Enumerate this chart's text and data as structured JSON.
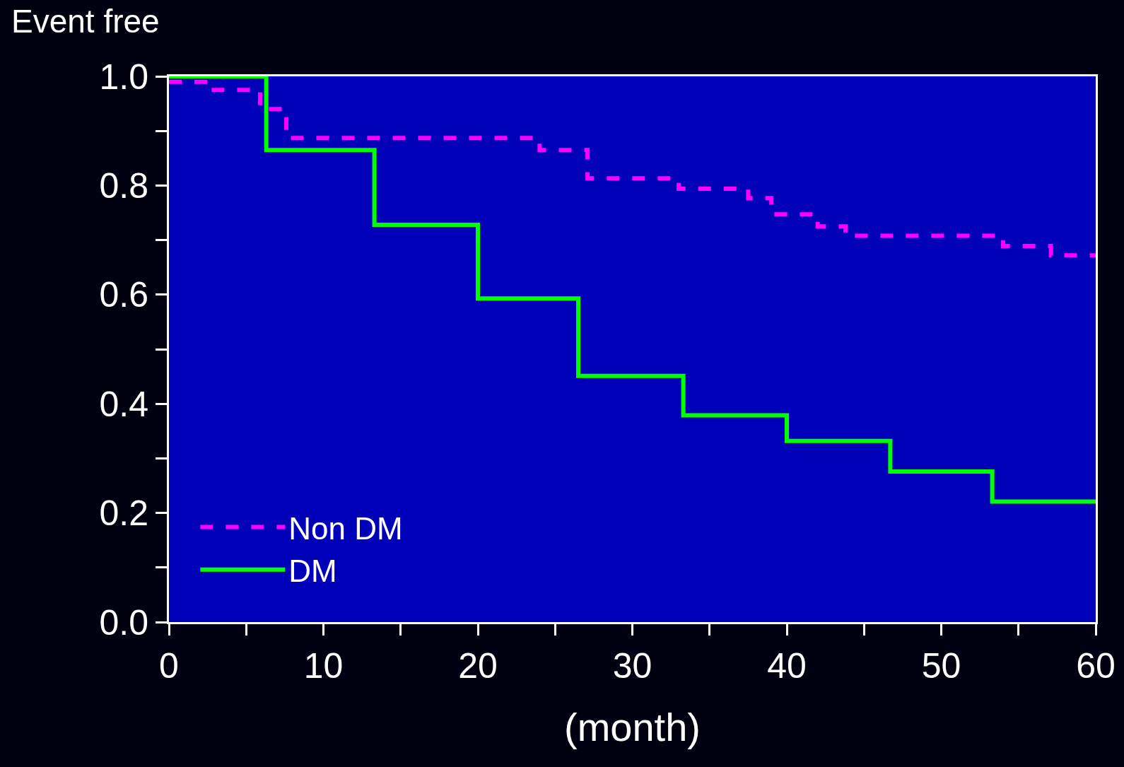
{
  "chart_data": {
    "type": "step",
    "xlabel": "(month)",
    "ylabel": "Event free",
    "xlim": [
      0,
      60
    ],
    "ylim": [
      0,
      1
    ],
    "xticks": [
      0,
      {
        "value": 5,
        "label": null
      },
      10,
      {
        "value": 15,
        "label": null
      },
      20,
      {
        "value": 25,
        "label": null
      },
      30,
      {
        "value": 35,
        "label": null
      },
      40,
      {
        "value": 45,
        "label": null
      },
      50,
      {
        "value": 55,
        "label": null
      },
      60
    ],
    "yticks": [
      {
        "value": 0,
        "label": "0.0"
      },
      {
        "value": 0.1,
        "label": null
      },
      0.2,
      {
        "value": 0.3,
        "label": null
      },
      0.4,
      {
        "value": 0.5,
        "label": null
      },
      0.6,
      {
        "value": 0.7,
        "label": null
      },
      0.8,
      {
        "value": 0.9,
        "label": null
      },
      {
        "value": 1,
        "label": "1.0"
      }
    ],
    "grid": false,
    "legend": "bottom left",
    "marker": "none",
    "series": [
      {
        "name": "Non DM",
        "color": "#ff00ff",
        "line_style": "dashed",
        "x": [
          0,
          2.9,
          5.9,
          7.6,
          24.0,
          27.1,
          33.0,
          37.5,
          39.0,
          42.0,
          43.8,
          54.0,
          57.1,
          60
        ],
        "values": [
          0.99,
          0.975,
          0.94,
          0.887,
          0.865,
          0.813,
          0.794,
          0.777,
          0.747,
          0.725,
          0.708,
          0.689,
          0.672,
          0.672
        ]
      },
      {
        "name": "DM",
        "color": "#00ff00",
        "line_style": "solid",
        "x": [
          0,
          6.3,
          13.3,
          20.0,
          26.5,
          33.3,
          40.0,
          46.7,
          53.3,
          60
        ],
        "values": [
          1.0,
          0.865,
          0.728,
          0.593,
          0.451,
          0.379,
          0.332,
          0.276,
          0.221,
          0.221
        ]
      }
    ]
  }
}
